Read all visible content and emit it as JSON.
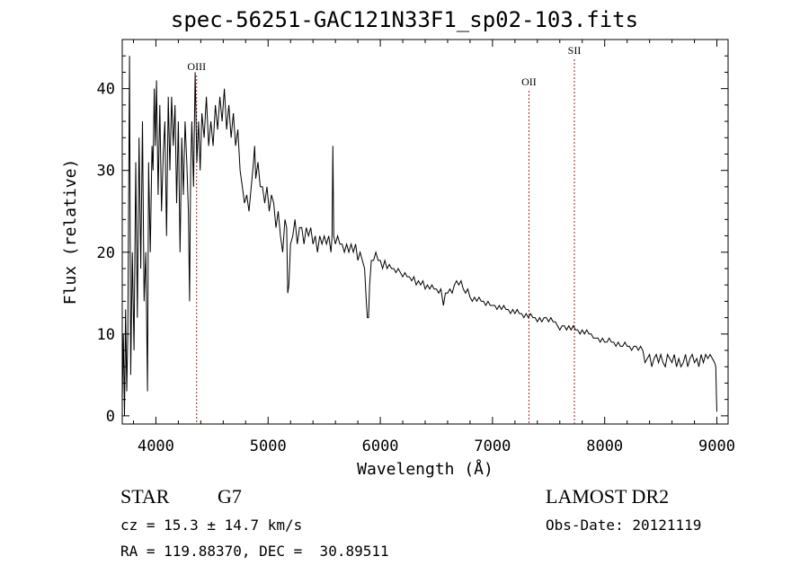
{
  "chart_data": {
    "type": "line",
    "title": "spec-56251-GAC121N33F1_sp02-103.fits",
    "xlabel": "Wavelength (Å)",
    "ylabel": "Flux (relative)",
    "xlim": [
      3700,
      9100
    ],
    "ylim": [
      -1,
      46
    ],
    "xticks": [
      4000,
      5000,
      6000,
      7000,
      8000,
      9000
    ],
    "yticks": [
      0,
      10,
      20,
      30,
      40
    ],
    "grid": false,
    "series": [
      {
        "color": "#000000",
        "points": [
          [
            3700,
            2
          ],
          [
            3710,
            10
          ],
          [
            3720,
            0
          ],
          [
            3730,
            13
          ],
          [
            3740,
            3
          ],
          [
            3750,
            10
          ],
          [
            3765,
            44
          ],
          [
            3775,
            5
          ],
          [
            3790,
            20
          ],
          [
            3805,
            8
          ],
          [
            3820,
            31
          ],
          [
            3835,
            12
          ],
          [
            3850,
            34
          ],
          [
            3865,
            18
          ],
          [
            3880,
            36
          ],
          [
            3895,
            14
          ],
          [
            3910,
            20
          ],
          [
            3925,
            3
          ],
          [
            3935,
            31
          ],
          [
            3950,
            20
          ],
          [
            3965,
            33
          ],
          [
            3975,
            30
          ],
          [
            3985,
            40
          ],
          [
            3995,
            33
          ],
          [
            4005,
            41
          ],
          [
            4020,
            27
          ],
          [
            4035,
            38
          ],
          [
            4050,
            25
          ],
          [
            4065,
            32
          ],
          [
            4080,
            36
          ],
          [
            4095,
            22
          ],
          [
            4110,
            39
          ],
          [
            4125,
            30
          ],
          [
            4140,
            39
          ],
          [
            4155,
            33
          ],
          [
            4170,
            38
          ],
          [
            4185,
            26
          ],
          [
            4200,
            36
          ],
          [
            4215,
            20
          ],
          [
            4230,
            34
          ],
          [
            4245,
            27
          ],
          [
            4260,
            36
          ],
          [
            4275,
            31
          ],
          [
            4290,
            25
          ],
          [
            4300,
            14
          ],
          [
            4310,
            30
          ],
          [
            4320,
            36
          ],
          [
            4335,
            28
          ],
          [
            4350,
            42
          ],
          [
            4365,
            31
          ],
          [
            4380,
            36
          ],
          [
            4395,
            30
          ],
          [
            4410,
            37
          ],
          [
            4430,
            34
          ],
          [
            4450,
            39
          ],
          [
            4470,
            33
          ],
          [
            4490,
            36
          ],
          [
            4510,
            33
          ],
          [
            4530,
            38
          ],
          [
            4550,
            35
          ],
          [
            4570,
            39
          ],
          [
            4590,
            36
          ],
          [
            4610,
            40
          ],
          [
            4630,
            35
          ],
          [
            4650,
            38
          ],
          [
            4670,
            34
          ],
          [
            4690,
            37
          ],
          [
            4710,
            33
          ],
          [
            4730,
            35
          ],
          [
            4750,
            30
          ],
          [
            4770,
            28
          ],
          [
            4790,
            26
          ],
          [
            4810,
            27
          ],
          [
            4830,
            25
          ],
          [
            4850,
            28
          ],
          [
            4870,
            31
          ],
          [
            4880,
            33
          ],
          [
            4890,
            29
          ],
          [
            4910,
            31
          ],
          [
            4930,
            28
          ],
          [
            4950,
            28
          ],
          [
            4970,
            26
          ],
          [
            4990,
            28
          ],
          [
            5010,
            25
          ],
          [
            5030,
            27
          ],
          [
            5050,
            26
          ],
          [
            5070,
            23
          ],
          [
            5090,
            25
          ],
          [
            5110,
            22
          ],
          [
            5130,
            20
          ],
          [
            5150,
            24
          ],
          [
            5165,
            23
          ],
          [
            5175,
            15
          ],
          [
            5185,
            16
          ],
          [
            5200,
            21
          ],
          [
            5220,
            22
          ],
          [
            5240,
            24
          ],
          [
            5260,
            21
          ],
          [
            5280,
            23
          ],
          [
            5300,
            23
          ],
          [
            5320,
            21
          ],
          [
            5340,
            23
          ],
          [
            5360,
            22
          ],
          [
            5380,
            23
          ],
          [
            5400,
            21
          ],
          [
            5420,
            22
          ],
          [
            5440,
            20
          ],
          [
            5460,
            22
          ],
          [
            5480,
            21
          ],
          [
            5500,
            22
          ],
          [
            5520,
            21
          ],
          [
            5540,
            22
          ],
          [
            5560,
            20
          ],
          [
            5570,
            22
          ],
          [
            5577,
            33
          ],
          [
            5585,
            22
          ],
          [
            5600,
            21
          ],
          [
            5620,
            22
          ],
          [
            5640,
            21
          ],
          [
            5660,
            21
          ],
          [
            5680,
            20
          ],
          [
            5700,
            21
          ],
          [
            5720,
            20
          ],
          [
            5740,
            21
          ],
          [
            5760,
            20
          ],
          [
            5780,
            21
          ],
          [
            5800,
            19
          ],
          [
            5820,
            20
          ],
          [
            5840,
            19
          ],
          [
            5860,
            18
          ],
          [
            5875,
            14
          ],
          [
            5885,
            12
          ],
          [
            5895,
            12
          ],
          [
            5905,
            16
          ],
          [
            5920,
            19
          ],
          [
            5940,
            19
          ],
          [
            5960,
            20
          ],
          [
            5980,
            19
          ],
          [
            6000,
            19
          ],
          [
            6020,
            18
          ],
          [
            6040,
            19
          ],
          [
            6060,
            18
          ],
          [
            6080,
            18.5
          ],
          [
            6100,
            18
          ],
          [
            6120,
            18
          ],
          [
            6140,
            17.5
          ],
          [
            6160,
            18
          ],
          [
            6180,
            17.5
          ],
          [
            6200,
            17
          ],
          [
            6220,
            17.5
          ],
          [
            6240,
            17
          ],
          [
            6260,
            17
          ],
          [
            6280,
            16.5
          ],
          [
            6300,
            17
          ],
          [
            6320,
            16
          ],
          [
            6340,
            16.5
          ],
          [
            6360,
            16
          ],
          [
            6380,
            16.5
          ],
          [
            6400,
            15.5
          ],
          [
            6420,
            16
          ],
          [
            6440,
            15.5
          ],
          [
            6460,
            16
          ],
          [
            6480,
            15.5
          ],
          [
            6500,
            15.5
          ],
          [
            6520,
            15
          ],
          [
            6540,
            15.5
          ],
          [
            6563,
            13.5
          ],
          [
            6580,
            15
          ],
          [
            6600,
            15
          ],
          [
            6620,
            15.5
          ],
          [
            6640,
            15
          ],
          [
            6660,
            16
          ],
          [
            6680,
            16.5
          ],
          [
            6700,
            16
          ],
          [
            6720,
            16.5
          ],
          [
            6740,
            15.5
          ],
          [
            6760,
            15
          ],
          [
            6780,
            15.5
          ],
          [
            6800,
            14.5
          ],
          [
            6820,
            14
          ],
          [
            6840,
            14.5
          ],
          [
            6860,
            14
          ],
          [
            6880,
            14.5
          ],
          [
            6900,
            14
          ],
          [
            6920,
            14
          ],
          [
            6940,
            13.5
          ],
          [
            6960,
            14
          ],
          [
            6980,
            13.5
          ],
          [
            7000,
            13.5
          ],
          [
            7020,
            13.5
          ],
          [
            7040,
            13
          ],
          [
            7060,
            13.5
          ],
          [
            7080,
            13
          ],
          [
            7100,
            13.5
          ],
          [
            7120,
            13
          ],
          [
            7140,
            13
          ],
          [
            7160,
            12.5
          ],
          [
            7180,
            13
          ],
          [
            7200,
            12.5
          ],
          [
            7220,
            13
          ],
          [
            7240,
            12.5
          ],
          [
            7260,
            12.5
          ],
          [
            7280,
            12
          ],
          [
            7300,
            12.5
          ],
          [
            7320,
            12
          ],
          [
            7340,
            12.5
          ],
          [
            7360,
            12
          ],
          [
            7380,
            12
          ],
          [
            7400,
            11.5
          ],
          [
            7420,
            12
          ],
          [
            7440,
            11.5
          ],
          [
            7460,
            12
          ],
          [
            7480,
            12
          ],
          [
            7500,
            11.5
          ],
          [
            7520,
            12
          ],
          [
            7540,
            11.5
          ],
          [
            7560,
            11.5
          ],
          [
            7580,
            11
          ],
          [
            7600,
            10.5
          ],
          [
            7620,
            11
          ],
          [
            7640,
            11
          ],
          [
            7660,
            10.5
          ],
          [
            7680,
            11
          ],
          [
            7700,
            10.5
          ],
          [
            7720,
            11
          ],
          [
            7740,
            10.5
          ],
          [
            7760,
            10.5
          ],
          [
            7780,
            10
          ],
          [
            7800,
            10.5
          ],
          [
            7820,
            10
          ],
          [
            7840,
            10.5
          ],
          [
            7860,
            10
          ],
          [
            7880,
            10
          ],
          [
            7900,
            9.5
          ],
          [
            7920,
            9.5
          ],
          [
            7940,
            9.5
          ],
          [
            7960,
            9
          ],
          [
            7980,
            9.5
          ],
          [
            8000,
            9
          ],
          [
            8020,
            9
          ],
          [
            8040,
            9.5
          ],
          [
            8060,
            9
          ],
          [
            8080,
            9
          ],
          [
            8100,
            8.5
          ],
          [
            8120,
            9
          ],
          [
            8140,
            8.5
          ],
          [
            8160,
            8.5
          ],
          [
            8180,
            9
          ],
          [
            8200,
            8.5
          ],
          [
            8220,
            8.5
          ],
          [
            8240,
            8
          ],
          [
            8260,
            8.5
          ],
          [
            8280,
            8.5
          ],
          [
            8300,
            8
          ],
          [
            8320,
            8.5
          ],
          [
            8340,
            8
          ],
          [
            8360,
            6.5
          ],
          [
            8380,
            7
          ],
          [
            8400,
            7.5
          ],
          [
            8420,
            6
          ],
          [
            8440,
            7
          ],
          [
            8460,
            7.5
          ],
          [
            8480,
            6.5
          ],
          [
            8500,
            7.5
          ],
          [
            8520,
            6.5
          ],
          [
            8540,
            6
          ],
          [
            8560,
            7.5
          ],
          [
            8580,
            7
          ],
          [
            8600,
            6.5
          ],
          [
            8620,
            7.5
          ],
          [
            8640,
            6
          ],
          [
            8660,
            7
          ],
          [
            8680,
            6
          ],
          [
            8700,
            6.5
          ],
          [
            8720,
            7.5
          ],
          [
            8740,
            6
          ],
          [
            8760,
            7
          ],
          [
            8780,
            7.5
          ],
          [
            8800,
            6.5
          ],
          [
            8820,
            7
          ],
          [
            8840,
            6
          ],
          [
            8860,
            7.5
          ],
          [
            8880,
            6.5
          ],
          [
            8900,
            7.5
          ],
          [
            8920,
            7
          ],
          [
            8940,
            7.5
          ],
          [
            8960,
            7
          ],
          [
            8980,
            6.5
          ],
          [
            8990,
            6
          ],
          [
            8995,
            3
          ],
          [
            9000,
            0.5
          ]
        ]
      }
    ],
    "lines": [
      {
        "label": "OIII",
        "x": 4363,
        "color": "#aa2222"
      },
      {
        "label": "OII",
        "x": 7325,
        "color": "#aa2222"
      },
      {
        "label": "SII",
        "x": 7730,
        "color": "#aa2222"
      }
    ]
  },
  "info": {
    "class_label": "STAR",
    "subclass": "G7",
    "survey": "LAMOST DR2",
    "cz": "cz = 15.3 ± 14.7 km/s",
    "obs_date": "Obs-Date: 20121119",
    "coords": "RA = 119.88370, DEC =  30.89511"
  }
}
